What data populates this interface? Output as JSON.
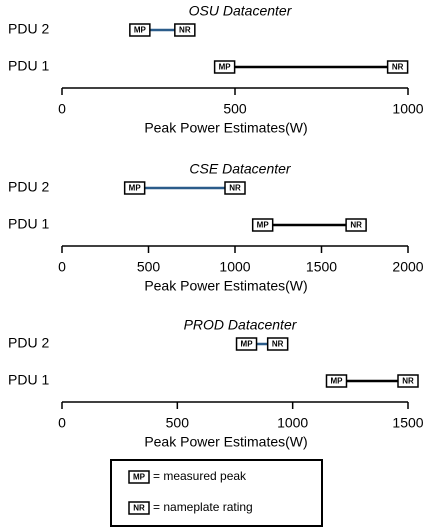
{
  "chart_data": [
    {
      "type": "range",
      "title": "OSU Datacenter",
      "categories": [
        "PDU 2",
        "PDU 1"
      ],
      "series": [
        {
          "name": "MP",
          "values": [
            225,
            470
          ]
        },
        {
          "name": "NR",
          "values": [
            355,
            970
          ]
        }
      ],
      "line_colors": [
        "#2b5c8a",
        "#000000"
      ],
      "x_label": "Peak Power Estimates(W)",
      "xlim": [
        0,
        1000
      ],
      "xticks": [
        0,
        500,
        1000
      ]
    },
    {
      "type": "range",
      "title": "CSE Datacenter",
      "categories": [
        "PDU 2",
        "PDU 1"
      ],
      "series": [
        {
          "name": "MP",
          "values": [
            420,
            1160
          ]
        },
        {
          "name": "NR",
          "values": [
            1000,
            1700
          ]
        }
      ],
      "line_colors": [
        "#2b5c8a",
        "#000000"
      ],
      "x_label": "Peak Power Estimates(W)",
      "xlim": [
        0,
        2000
      ],
      "xticks": [
        0,
        500,
        1000,
        1500,
        2000
      ]
    },
    {
      "type": "range",
      "title": "PROD Datacenter",
      "categories": [
        "PDU 2",
        "PDU 1"
      ],
      "series": [
        {
          "name": "MP",
          "values": [
            800,
            1190
          ]
        },
        {
          "name": "NR",
          "values": [
            935,
            1500
          ]
        }
      ],
      "line_colors": [
        "#2b5c8a",
        "#000000"
      ],
      "x_label": "Peak Power Estimates(W)",
      "xlim": [
        0,
        1500
      ],
      "xticks": [
        0,
        500,
        1000,
        1500
      ]
    }
  ],
  "legend": [
    {
      "key": "MP",
      "text": "= measured peak"
    },
    {
      "key": "NR",
      "text": "= nameplate rating"
    }
  ]
}
